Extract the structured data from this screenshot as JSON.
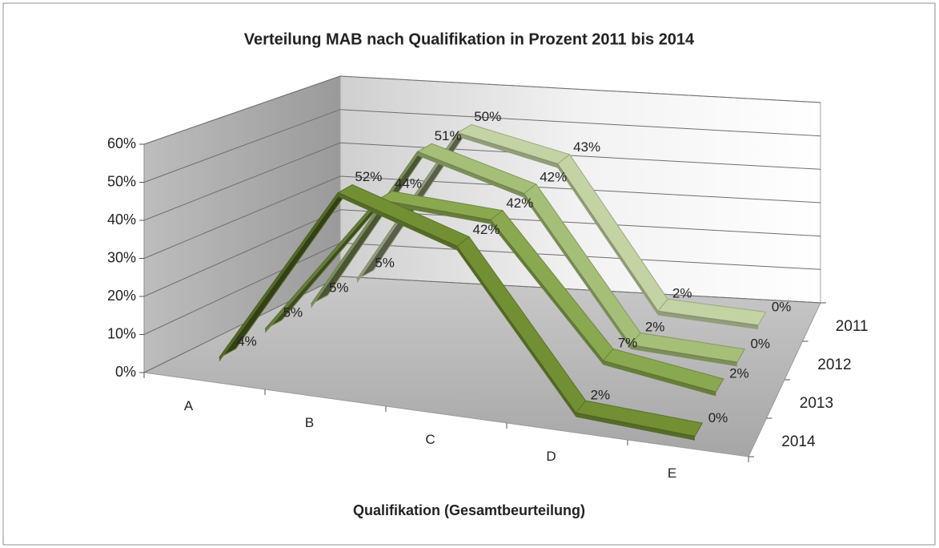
{
  "chart_data": {
    "type": "line3d",
    "title": "Verteilung MAB nach Qualifikation in Prozent 2011 bis 2014",
    "x_label": "Qualifikation (Gesamtbeurteilung)",
    "categories": [
      "A",
      "B",
      "C",
      "D",
      "E"
    ],
    "series": [
      {
        "name": "2011",
        "color": "#c3d3a3",
        "values": [
          5,
          50,
          43,
          2,
          0
        ],
        "value_labels": [
          "5%",
          "50%",
          "43%",
          "2%",
          "0%"
        ]
      },
      {
        "name": "2012",
        "color": "#a6bf78",
        "values": [
          5,
          51,
          42,
          2,
          0
        ],
        "value_labels": [
          "5%",
          "51%",
          "42%",
          "2%",
          "0%"
        ]
      },
      {
        "name": "2013",
        "color": "#8aa84f",
        "values": [
          5,
          44,
          42,
          7,
          2
        ],
        "value_labels": [
          "5%",
          "44%",
          "42%",
          "7%",
          "2%"
        ]
      },
      {
        "name": "2014",
        "color": "#728f34",
        "values": [
          4,
          52,
          42,
          2,
          0
        ],
        "value_labels": [
          "4%",
          "52%",
          "42%",
          "2%",
          "0%"
        ]
      }
    ],
    "ylim": [
      0,
      60
    ],
    "yticks": [
      {
        "value": 0,
        "label": "0%"
      },
      {
        "value": 10,
        "label": "10%"
      },
      {
        "value": 20,
        "label": "20%"
      },
      {
        "value": 30,
        "label": "30%"
      },
      {
        "value": 40,
        "label": "40%"
      },
      {
        "value": 50,
        "label": "50%"
      },
      {
        "value": 60,
        "label": "60%"
      }
    ],
    "grid": true
  }
}
